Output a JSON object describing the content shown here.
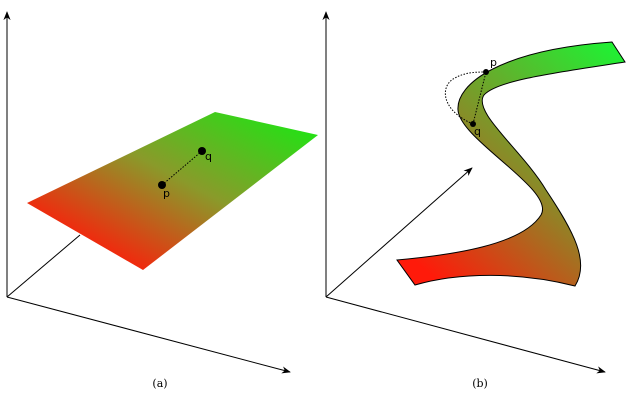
{
  "panels": [
    {
      "label": "(a)",
      "point_p": "p",
      "point_q": "q"
    },
    {
      "label": "(b)",
      "point_p": "p",
      "point_q": "q"
    }
  ]
}
